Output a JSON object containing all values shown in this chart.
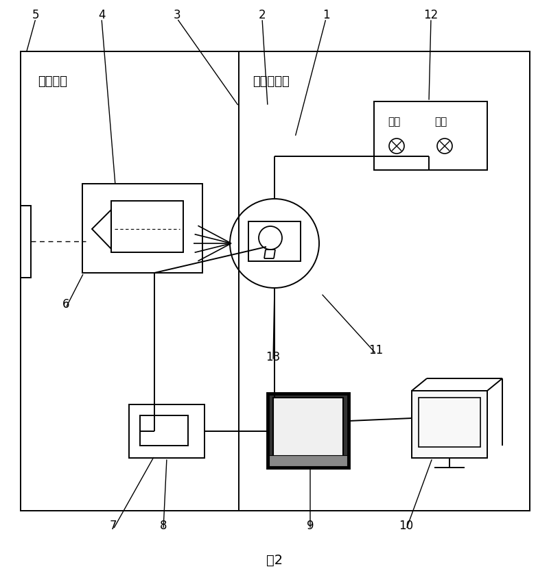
{
  "bg_color": "#ffffff",
  "black": "#000000",
  "gray_dark": "#444444",
  "gray_med": "#888888",
  "gray_light": "#cccccc",
  "dark_room_label": "【暗室】",
  "work_room_label": "【工作间】",
  "voltage_label": "电压",
  "current_label": "电流",
  "figure_label": "图2",
  "lw": 1.4
}
